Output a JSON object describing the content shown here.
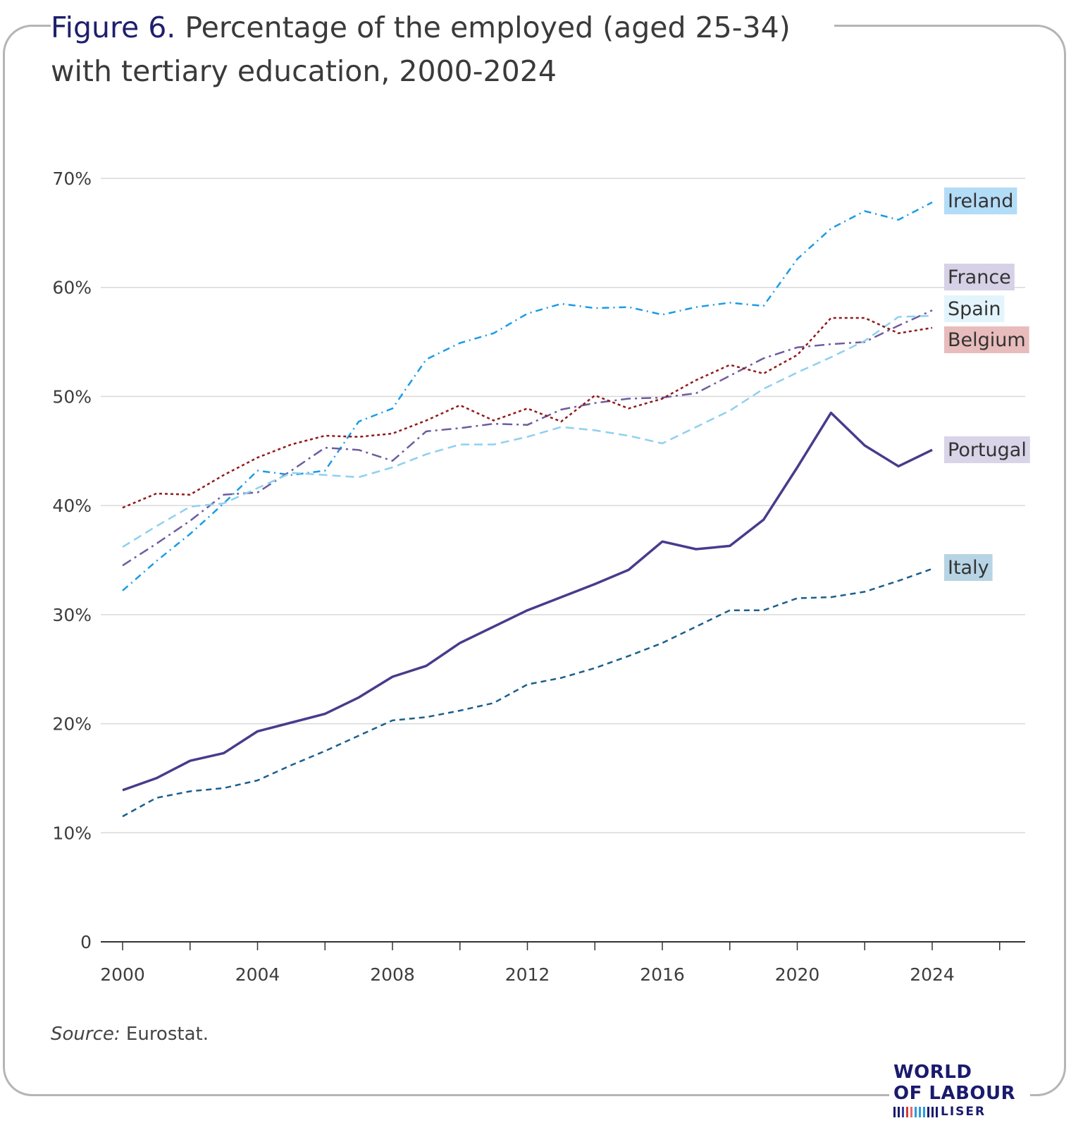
{
  "figure": {
    "label": "Figure 6.",
    "title": "Percentage of the employed (aged 25-34) with tertiary education, 2000-2024",
    "source_label": "Source:",
    "source_text": "Eurostat.",
    "logo_line1": "WORLD",
    "logo_line2": "OF LABOUR",
    "logo_line3": "LISER"
  },
  "chart_data": {
    "type": "line",
    "title": "Percentage of the employed (aged 25-34) with tertiary education, 2000-2024",
    "xlabel": "",
    "ylabel": "",
    "x": [
      2000,
      2001,
      2002,
      2003,
      2004,
      2005,
      2006,
      2007,
      2008,
      2009,
      2010,
      2011,
      2012,
      2013,
      2014,
      2015,
      2016,
      2017,
      2018,
      2019,
      2020,
      2021,
      2022,
      2023,
      2024
    ],
    "xlim": [
      2000,
      2026.7
    ],
    "ylim": [
      0,
      70
    ],
    "xticks": [
      2000,
      2004,
      2008,
      2012,
      2016,
      2020,
      2024
    ],
    "xtick_labels": [
      "2000",
      "2004",
      "2008",
      "2012",
      "2016",
      "2020",
      "2024"
    ],
    "yticks": [
      0,
      10,
      20,
      30,
      40,
      50,
      60,
      70
    ],
    "ytick_labels": [
      "0",
      "10%",
      "20%",
      "30%",
      "40%",
      "50%",
      "60%",
      "70%"
    ],
    "grid": "horizontal",
    "legend": "inline labels at right end of lines",
    "series": [
      {
        "name": "Ireland",
        "color": "#1b9be6",
        "label_bg": "#b3dcf7",
        "dash": "10,6,2,6",
        "width": 2.5,
        "values": [
          32.2,
          34.9,
          37.4,
          40.2,
          43.2,
          42.8,
          43.2,
          47.7,
          48.9,
          53.4,
          54.9,
          55.8,
          57.6,
          58.5,
          58.1,
          58.2,
          57.5,
          58.2,
          58.6,
          58.3,
          62.6,
          65.4,
          67.0,
          66.2,
          67.8
        ]
      },
      {
        "name": "France",
        "color": "#6e5c9e",
        "label_bg": "#d6d1e6",
        "dash": "14,6,3,6",
        "width": 2.5,
        "values": [
          34.5,
          36.5,
          38.6,
          41.0,
          41.2,
          43.2,
          45.3,
          45.1,
          44.1,
          46.8,
          47.1,
          47.5,
          47.4,
          48.8,
          49.4,
          49.8,
          49.9,
          50.3,
          51.9,
          53.5,
          54.5,
          54.8,
          55.0,
          56.5,
          57.9
        ]
      },
      {
        "name": "Spain",
        "color": "#8fd0ef",
        "label_bg": "#e4f4fc",
        "dash": "12,7",
        "width": 2.5,
        "values": [
          36.2,
          38.1,
          39.9,
          40.2,
          41.6,
          43.0,
          42.8,
          42.6,
          43.5,
          44.7,
          45.6,
          45.6,
          46.3,
          47.2,
          46.9,
          46.4,
          45.7,
          47.2,
          48.7,
          50.7,
          52.2,
          53.6,
          55.1,
          57.3,
          57.4
        ]
      },
      {
        "name": "Belgium",
        "color": "#8f1a1a",
        "label_bg": "#e8bcbc",
        "dash": "4,4",
        "width": 2.5,
        "values": [
          39.8,
          41.1,
          41.0,
          42.8,
          44.4,
          45.6,
          46.4,
          46.3,
          46.6,
          47.8,
          49.2,
          47.8,
          48.9,
          47.7,
          50.1,
          48.9,
          49.8,
          51.5,
          52.9,
          52.1,
          53.8,
          57.2,
          57.2,
          55.8,
          56.3
        ]
      },
      {
        "name": "Portugal",
        "color": "#463c8c",
        "label_bg": "#d9d4e8",
        "dash": "",
        "width": 3.5,
        "values": [
          13.9,
          15.0,
          16.6,
          17.3,
          19.3,
          20.1,
          20.9,
          22.4,
          24.3,
          25.3,
          27.4,
          28.9,
          30.4,
          31.6,
          32.8,
          34.1,
          36.7,
          36.0,
          36.3,
          38.7,
          43.5,
          48.5,
          45.5,
          43.6,
          45.1
        ]
      },
      {
        "name": "Italy",
        "color": "#1b5f8c",
        "label_bg": "#b7d4e4",
        "dash": "8,6",
        "width": 2.5,
        "values": [
          11.5,
          13.2,
          13.8,
          14.1,
          14.8,
          16.2,
          17.5,
          18.9,
          20.3,
          20.6,
          21.2,
          21.9,
          23.6,
          24.2,
          25.1,
          26.2,
          27.4,
          28.9,
          30.4,
          30.4,
          31.5,
          31.6,
          32.1,
          33.1,
          34.2
        ]
      }
    ]
  }
}
